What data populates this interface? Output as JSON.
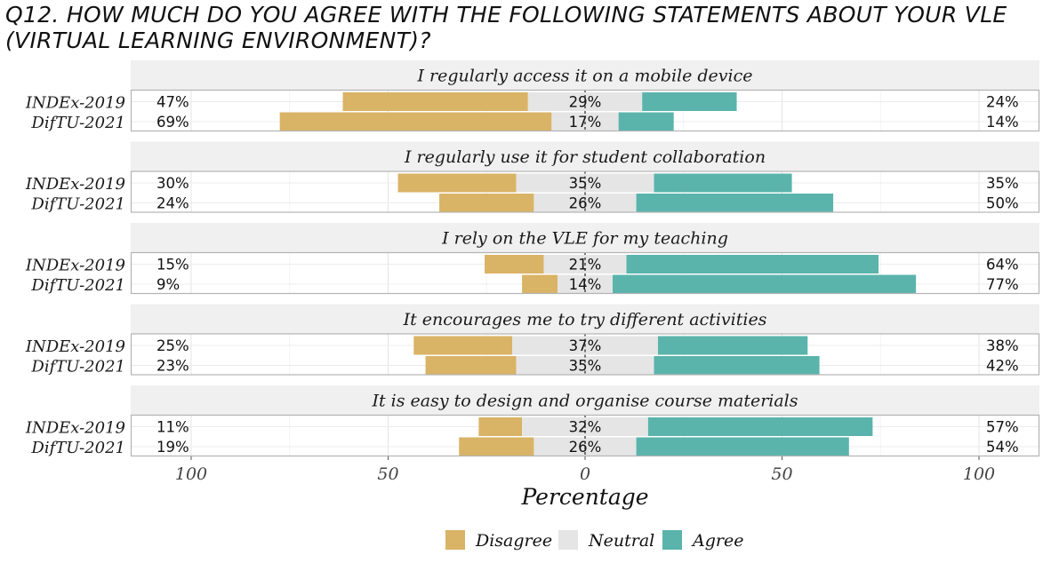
{
  "chart_data": {
    "type": "bar",
    "title": "Q12. HOW MUCH DO YOU AGREE WITH THE FOLLOWING STATEMENTS ABOUT YOUR VLE (VIRTUAL LEARNING ENVIRONMENT)?",
    "xlabel": "Percentage",
    "xlim": [
      -100,
      100
    ],
    "xticks": [
      -100,
      -50,
      0,
      50,
      100
    ],
    "xtick_labels": [
      "100",
      "50",
      "0",
      "50",
      "100"
    ],
    "groups": [
      "INDEx-2019",
      "DifTU-2021"
    ],
    "levels": [
      "Disagree",
      "Neutral",
      "Agree"
    ],
    "colors": {
      "Disagree": "#d9b366",
      "Neutral": "#e5e5e5",
      "Agree": "#5ab4ac"
    },
    "legend_position": "bottom",
    "grid": true,
    "panels": [
      {
        "statement": "I regularly access it on a mobile device",
        "rows": [
          {
            "group": "INDEx-2019",
            "disagree": 47,
            "neutral": 29,
            "agree": 24
          },
          {
            "group": "DifTU-2021",
            "disagree": 69,
            "neutral": 17,
            "agree": 14
          }
        ]
      },
      {
        "statement": "I regularly use it for student collaboration",
        "rows": [
          {
            "group": "INDEx-2019",
            "disagree": 30,
            "neutral": 35,
            "agree": 35
          },
          {
            "group": "DifTU-2021",
            "disagree": 24,
            "neutral": 26,
            "agree": 50
          }
        ]
      },
      {
        "statement": "I rely on the VLE for my teaching",
        "rows": [
          {
            "group": "INDEx-2019",
            "disagree": 15,
            "neutral": 21,
            "agree": 64
          },
          {
            "group": "DifTU-2021",
            "disagree": 9,
            "neutral": 14,
            "agree": 77
          }
        ]
      },
      {
        "statement": "It encourages me to try different activities",
        "rows": [
          {
            "group": "INDEx-2019",
            "disagree": 25,
            "neutral": 37,
            "agree": 38
          },
          {
            "group": "DifTU-2021",
            "disagree": 23,
            "neutral": 35,
            "agree": 42
          }
        ]
      },
      {
        "statement": "It is easy to design and organise course materials",
        "rows": [
          {
            "group": "INDEx-2019",
            "disagree": 11,
            "neutral": 32,
            "agree": 57
          },
          {
            "group": "DifTU-2021",
            "disagree": 19,
            "neutral": 26,
            "agree": 54
          }
        ]
      }
    ]
  }
}
